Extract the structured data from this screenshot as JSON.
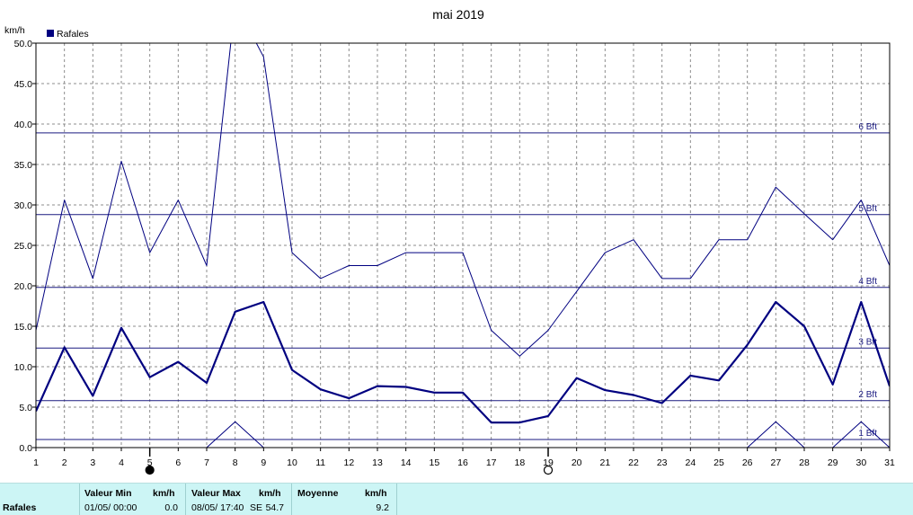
{
  "chart_data": {
    "type": "line",
    "title": "mai 2019",
    "ylabel": "km/h",
    "ylim": [
      0,
      50
    ],
    "yticks": [
      "0.0",
      "5.0",
      "10.0",
      "15.0",
      "20.0",
      "25.0",
      "30.0",
      "35.0",
      "40.0",
      "45.0",
      "50.0"
    ],
    "x": [
      1,
      2,
      3,
      4,
      5,
      6,
      7,
      8,
      9,
      10,
      11,
      12,
      13,
      14,
      15,
      16,
      17,
      18,
      19,
      20,
      21,
      22,
      23,
      24,
      25,
      26,
      27,
      28,
      29,
      30,
      31
    ],
    "grid": true,
    "legend": {
      "position": "top-left",
      "label": "Rafales",
      "color": "#000080"
    },
    "series": [
      {
        "role": "max",
        "values": [
          14.5,
          30.6,
          20.9,
          35.4,
          24.1,
          30.6,
          22.5,
          55.0,
          48.3,
          24.1,
          20.9,
          22.5,
          22.5,
          24.1,
          24.1,
          24.1,
          14.5,
          11.3,
          14.5,
          19.3,
          24.1,
          25.7,
          20.9,
          20.9,
          25.7,
          25.7,
          32.2,
          28.9,
          25.7,
          30.6,
          22.5
        ],
        "color": "#000080"
      },
      {
        "name": "Rafales",
        "role": "mean",
        "values": [
          4.5,
          12.4,
          6.4,
          14.8,
          8.7,
          10.6,
          8.0,
          16.8,
          18.0,
          9.6,
          7.2,
          6.1,
          7.6,
          7.5,
          6.8,
          6.8,
          3.1,
          3.1,
          3.9,
          8.6,
          7.1,
          6.5,
          5.5,
          8.9,
          8.3,
          12.7,
          18.0,
          15.0,
          7.8,
          18.0,
          7.6
        ],
        "color": "#000080"
      },
      {
        "role": "min",
        "values": [
          null,
          null,
          null,
          null,
          null,
          null,
          0.0,
          3.2,
          0.0,
          null,
          null,
          null,
          null,
          null,
          null,
          null,
          null,
          null,
          null,
          null,
          null,
          null,
          null,
          null,
          null,
          0.0,
          3.2,
          0.0,
          0.0,
          3.2,
          0.0
        ],
        "color": "#000080"
      }
    ],
    "reference_lines": [
      {
        "label": "1 Bft",
        "value": 1.0
      },
      {
        "label": "2 Bft",
        "value": 5.8
      },
      {
        "label": "3 Bft",
        "value": 12.3
      },
      {
        "label": "4 Bft",
        "value": 19.8
      },
      {
        "label": "5 Bft",
        "value": 28.8
      },
      {
        "label": "6 Bft",
        "value": 38.9
      }
    ],
    "moon_phases": [
      {
        "day": 5,
        "phase": "new-moon"
      },
      {
        "day": 19,
        "phase": "full-moon"
      }
    ]
  },
  "footer": {
    "series_label": "Rafales",
    "min_header": "Valeur Min",
    "min_unit": "km/h",
    "min_date": "01/05/  00:00",
    "min_value": "0.0",
    "max_header": "Valeur Max",
    "max_unit": "km/h",
    "max_date": "08/05/  17:40",
    "max_dir": "SE",
    "max_value": "54.7",
    "mean_header": "Moyenne",
    "mean_unit": "km/h",
    "mean_value": "9.2"
  }
}
